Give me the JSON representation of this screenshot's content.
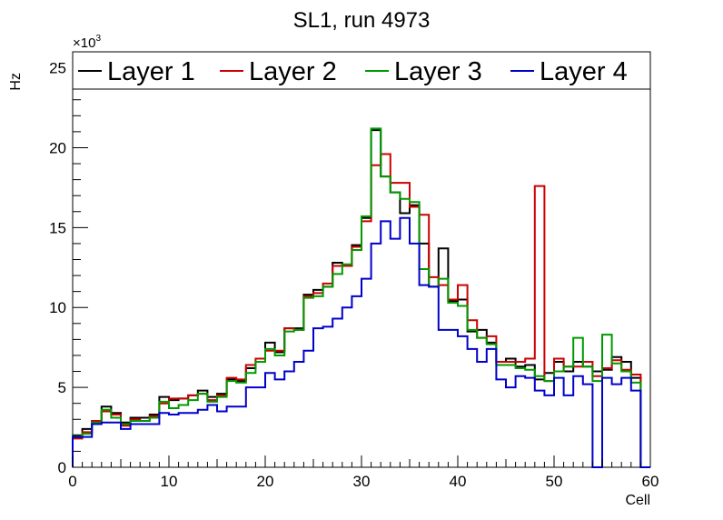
{
  "chart_data": {
    "type": "histogram",
    "title": "SL1, run 4973",
    "xlabel": "Cell",
    "ylabel": "Hz",
    "y_multiplier_label": "×10",
    "y_multiplier_exponent": "3",
    "xlim": [
      0,
      60
    ],
    "ylim": [
      0,
      26
    ],
    "x_ticks": [
      0,
      10,
      20,
      30,
      40,
      50,
      60
    ],
    "y_ticks": [
      0,
      5,
      10,
      15,
      20,
      25
    ],
    "bin_width": 1,
    "bin_start": 0,
    "legend_position": "top",
    "grid": false,
    "series": [
      {
        "name": "Layer 1",
        "color": "#000000",
        "values": [
          2.0,
          2.4,
          2.9,
          3.8,
          3.4,
          2.8,
          3.1,
          3.1,
          3.3,
          4.4,
          4.2,
          4.3,
          4.5,
          4.8,
          4.4,
          4.6,
          5.5,
          5.4,
          6.2,
          6.6,
          7.8,
          7.2,
          8.7,
          8.7,
          10.8,
          11.1,
          11.3,
          12.8,
          12.6,
          13.9,
          15.6,
          21.1,
          18.2,
          17.2,
          15.9,
          16.4,
          14.0,
          11.3,
          13.7,
          10.4,
          10.5,
          8.5,
          8.6,
          7.8,
          6.6,
          6.8,
          6.3,
          6.4,
          5.5,
          5.9,
          6.6,
          6.0,
          6.6,
          6.3,
          6.0,
          6.1,
          6.9,
          6.6,
          5.6,
          0
        ]
      },
      {
        "name": "Layer 2",
        "color": "#cc0000",
        "values": [
          1.8,
          2.2,
          2.9,
          3.5,
          3.3,
          2.6,
          3.0,
          2.9,
          3.2,
          4.0,
          4.3,
          4.3,
          4.5,
          4.6,
          4.2,
          4.5,
          5.6,
          5.5,
          6.4,
          6.8,
          7.3,
          7.3,
          8.7,
          8.6,
          10.7,
          10.9,
          11.5,
          12.6,
          12.6,
          13.8,
          15.4,
          18.9,
          19.6,
          17.8,
          17.8,
          16.3,
          15.8,
          11.9,
          11.4,
          10.5,
          11.4,
          9.2,
          8.1,
          8.2,
          6.6,
          6.6,
          6.6,
          6.8,
          17.6,
          5.4,
          6.8,
          6.3,
          6.3,
          6.6,
          5.7,
          6.2,
          6.7,
          6.1,
          5.8,
          0
        ]
      },
      {
        "name": "Layer 3",
        "color": "#009900",
        "values": [
          2.0,
          2.1,
          2.8,
          3.6,
          3.1,
          2.7,
          2.9,
          2.9,
          3.1,
          4.1,
          3.7,
          3.9,
          4.2,
          4.6,
          4.1,
          4.4,
          5.4,
          5.3,
          5.9,
          6.6,
          7.4,
          7.0,
          8.5,
          8.6,
          10.6,
          10.7,
          11.3,
          12.1,
          12.7,
          13.6,
          15.7,
          21.2,
          18.2,
          17.2,
          16.8,
          16.6,
          12.4,
          11.3,
          11.8,
          10.3,
          10.1,
          8.6,
          8.1,
          7.7,
          6.4,
          6.4,
          6.2,
          6.1,
          5.7,
          5.4,
          6.0,
          6.3,
          8.1,
          6.3,
          5.4,
          8.3,
          6.5,
          6.0,
          5.3,
          0
        ]
      },
      {
        "name": "Layer 4",
        "color": "#0000cc",
        "values": [
          1.9,
          1.9,
          2.7,
          2.8,
          2.8,
          2.4,
          2.7,
          2.7,
          2.7,
          3.4,
          3.3,
          3.4,
          3.4,
          3.6,
          3.9,
          3.5,
          3.8,
          3.8,
          5.0,
          5.0,
          5.9,
          5.5,
          6.0,
          6.6,
          7.3,
          8.7,
          8.8,
          9.3,
          10.0,
          10.7,
          11.8,
          14.0,
          15.4,
          14.3,
          15.6,
          14.0,
          11.4,
          11.3,
          8.6,
          8.6,
          8.2,
          7.4,
          6.6,
          7.4,
          5.5,
          5.0,
          5.7,
          5.6,
          4.8,
          4.5,
          5.6,
          4.5,
          5.7,
          5.2,
          0,
          5.6,
          5.2,
          5.6,
          4.8,
          0
        ]
      }
    ]
  }
}
